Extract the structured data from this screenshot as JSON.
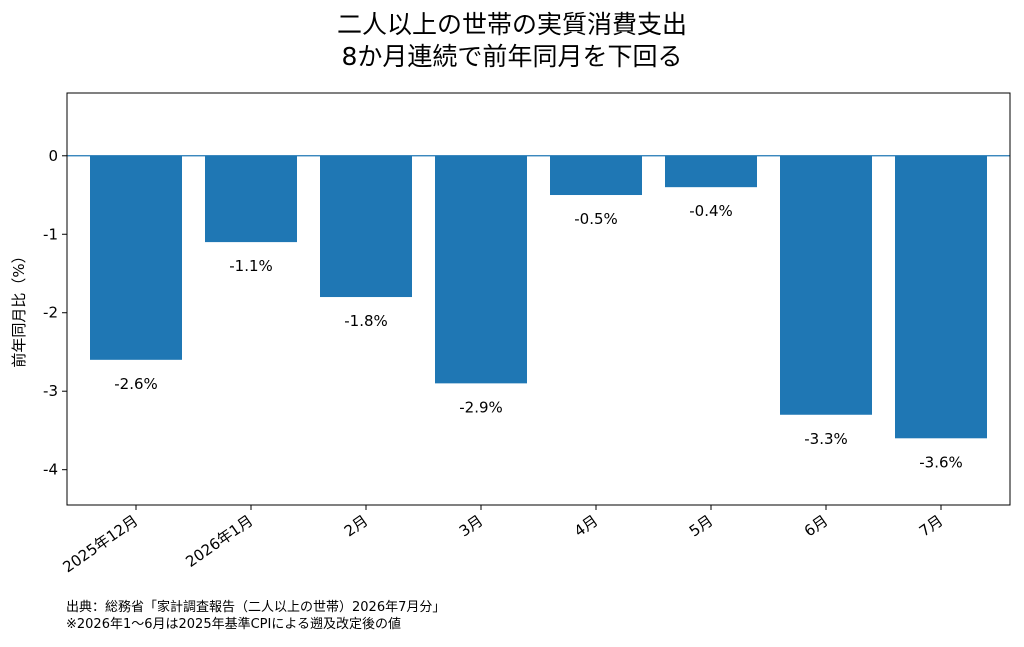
{
  "chart_data": {
    "type": "bar",
    "title_lines": [
      "二人以上の世帯の実質消費支出",
      "8か月連続で前年同月を下回る"
    ],
    "xlabel": "",
    "ylabel": "前年同月比（%）",
    "categories": [
      "2025年12月",
      "2026年1月",
      "2月",
      "3月",
      "4月",
      "5月",
      "6月",
      "7月"
    ],
    "values": [
      -2.6,
      -1.1,
      -1.8,
      -2.9,
      -0.5,
      -0.4,
      -3.3,
      -3.6
    ],
    "data_labels": [
      "-2.6%",
      "-1.1%",
      "-1.8%",
      "-2.9%",
      "-0.5%",
      "-0.4%",
      "-3.3%",
      "-3.6%"
    ],
    "ylim": [
      -4.45,
      0.8
    ],
    "yticks": [
      0,
      -1,
      -2,
      -3,
      -4
    ],
    "ytick_labels": [
      "0",
      "-1",
      "-2",
      "-3",
      "-4"
    ],
    "bar_color": "#1f77b4",
    "zero_line_color": "#1f77b4",
    "grid": false,
    "legend": "none"
  },
  "notes": [
    "出典：総務省「家計調査報告（二人以上の世帯）2026年7月分」",
    "※2026年1～6月は2025年基準CPIによる遡及改定後の値"
  ]
}
